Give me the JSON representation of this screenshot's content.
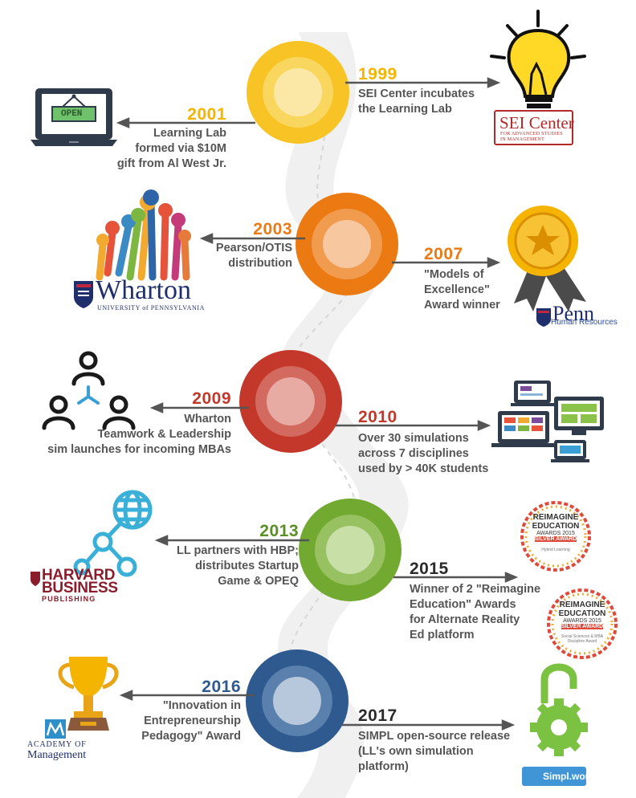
{
  "events": [
    {
      "year": "2001",
      "description": "Learning Lab\nformed via $10M\ngift from Al West Jr."
    },
    {
      "year": "1999",
      "description": "SEI Center incubates\nthe Learning Lab"
    },
    {
      "year": "2003",
      "description": "Pearson/OTIS\ndistribution"
    },
    {
      "year": "2007",
      "description": "\"Models of\nExcellence\"\nAward winner"
    },
    {
      "year": "2009",
      "description": "Wharton\nTeamwork & Leadership\nsim launches for incoming MBAs"
    },
    {
      "year": "2010",
      "description": "Over 30 simulations\nacross 7 disciplines\nused by > 40K students"
    },
    {
      "year": "2013",
      "description": "LL partners with HBP;\ndistributes Startup\nGame & OPEQ"
    },
    {
      "year": "2015",
      "description": "Winner of 2 \"Reimagine\nEducation\" Awards\nfor Alternate Reality\nEd platform"
    },
    {
      "year": "2016",
      "description": "\"Innovation in\nEntrepreneurship\nPedagogy\" Award"
    },
    {
      "year": "2017",
      "description": "SIMPL open-source release\n(LL's own simulation\nplatform)"
    }
  ],
  "logos": {
    "open_sign": "OPEN",
    "sei_main": "SEI Center",
    "sei_sub": "FOR ADVANCED STUDIES\nIN MANAGEMENT",
    "wharton_word": "Wharton",
    "wharton_sub": "UNIVERSITY of PENNSYLVANIA",
    "penn_word": "Penn",
    "penn_sub": "Human Resources",
    "hbp_line1": "HARVARD",
    "hbp_line2": "BUSINESS",
    "hbp_line3": "PUBLISHING",
    "award1_title": "REIMAGINE\nEDUCATION",
    "award1_year": "AWARDS 2015",
    "award1_level": "SILVER AWARD",
    "award1_category": "Hybrid Learning",
    "award2_title": "REIMAGINE\nEDUCATION",
    "award2_year": "AWARDS 2015",
    "award2_level": "SILVER AWARD",
    "award2_category": "Social Sciences & MBA\nDiscipline Award",
    "aom_line1": "ACADEMY OF",
    "aom_line2": "Management",
    "simpl": "Simpl.world"
  },
  "colors": {
    "yellow": "#f7c325",
    "orange": "#ec7a13",
    "red": "#c4382b",
    "green": "#72a931",
    "blue": "#2e5a8f",
    "connector": "#555555"
  }
}
